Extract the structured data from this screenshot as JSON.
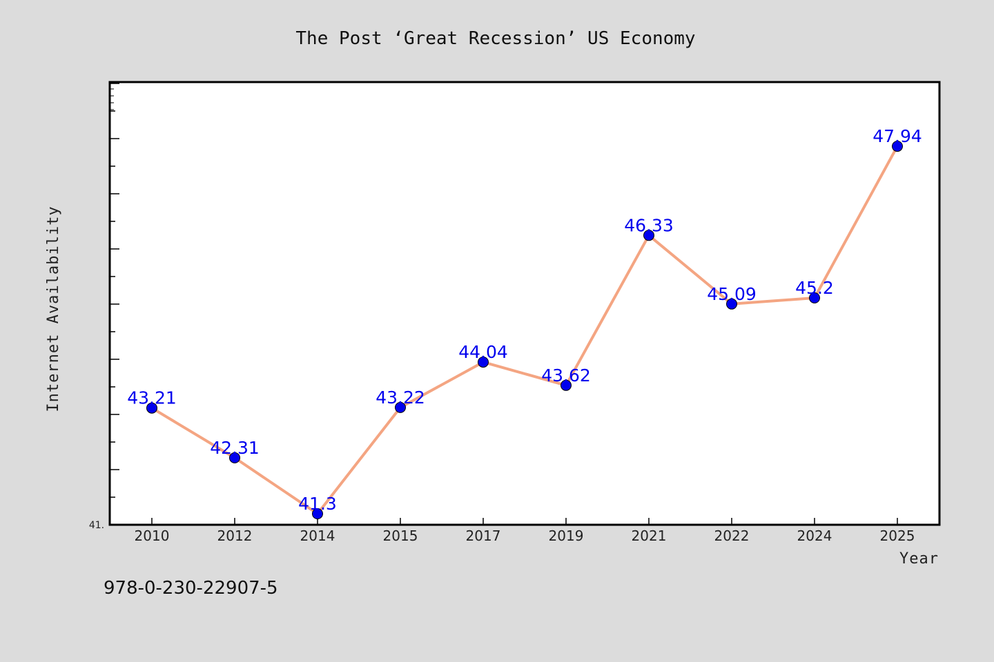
{
  "chart_data": {
    "type": "line",
    "title": "The Post ‘Great Recession’ US Economy",
    "xlabel": "Year",
    "ylabel": "Internet Availability",
    "categories": [
      "2010",
      "2012",
      "2014",
      "2015",
      "2017",
      "2019",
      "2021",
      "2022",
      "2024",
      "2025"
    ],
    "values": [
      43.21,
      42.31,
      41.3,
      43.22,
      44.04,
      43.62,
      46.33,
      45.09,
      45.2,
      47.94
    ],
    "data_labels": [
      "43.21",
      "42.31",
      "41.3",
      "43.22",
      "44.04",
      "43.62",
      "46.33",
      "45.09",
      "45.2",
      "47.94"
    ],
    "ylim": [
      41.1,
      49.1
    ],
    "y_min_label": "41.",
    "grid": false,
    "colors": {
      "line": "#f4a582",
      "marker": "#0000ee",
      "label": "#0000ee",
      "background": "#dcdcdc",
      "plot_bg": "#ffffff"
    }
  },
  "footer": {
    "isbn": "978-0-230-22907-5"
  }
}
